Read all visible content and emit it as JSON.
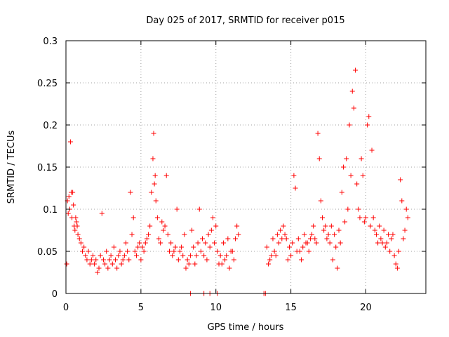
{
  "chart_data": {
    "type": "scatter",
    "title": "Day 025 of 2017, SRMTID for receiver p015",
    "xlabel": "GPS time / hours",
    "ylabel": "SRMTID / TECUs",
    "xlim": [
      0,
      24
    ],
    "ylim": [
      0,
      0.3
    ],
    "xticks": [
      0,
      5,
      10,
      15,
      20
    ],
    "xtick_labels": [
      "0",
      "5",
      "10",
      "15",
      "20"
    ],
    "yticks": [
      0,
      0.05,
      0.1,
      0.15,
      0.2,
      0.25,
      0.3
    ],
    "ytick_labels": [
      "0",
      "0.05",
      "0.1",
      "0.15",
      "0.2",
      "0.25",
      "0.3"
    ],
    "grid": true,
    "marker": "+",
    "color": "#ff0000",
    "series": [
      {
        "name": "SRMTID",
        "x": [
          0.05,
          0.1,
          0.15,
          0.2,
          0.25,
          0.3,
          0.35,
          0.4,
          0.45,
          0.5,
          0.55,
          0.6,
          0.65,
          0.7,
          0.75,
          0.8,
          0.9,
          1.0,
          1.1,
          1.2,
          1.3,
          1.4,
          1.5,
          1.6,
          1.7,
          1.8,
          1.9,
          2.0,
          2.1,
          2.2,
          2.3,
          2.4,
          2.5,
          2.6,
          2.7,
          2.8,
          2.9,
          3.0,
          3.1,
          3.2,
          3.3,
          3.4,
          3.5,
          3.6,
          3.7,
          3.8,
          3.9,
          4.0,
          4.1,
          4.2,
          4.3,
          4.4,
          4.5,
          4.6,
          4.7,
          4.8,
          4.9,
          5.0,
          5.1,
          5.2,
          5.3,
          5.4,
          5.5,
          5.6,
          5.7,
          5.8,
          5.85,
          5.9,
          5.95,
          6.0,
          6.1,
          6.2,
          6.3,
          6.4,
          6.5,
          6.6,
          6.7,
          6.8,
          6.9,
          7.0,
          7.1,
          7.2,
          7.3,
          7.4,
          7.5,
          7.6,
          7.7,
          7.8,
          7.9,
          8.0,
          8.1,
          8.2,
          8.3,
          8.4,
          8.5,
          8.6,
          8.7,
          8.8,
          8.9,
          9.0,
          9.1,
          9.2,
          9.3,
          9.4,
          9.5,
          9.6,
          9.7,
          9.8,
          9.9,
          10.0,
          10.1,
          10.2,
          10.3,
          10.4,
          10.5,
          10.6,
          10.7,
          10.8,
          10.9,
          11.0,
          11.1,
          11.2,
          11.3,
          11.4,
          11.5,
          13.4,
          13.5,
          13.6,
          13.7,
          13.8,
          13.9,
          14.0,
          14.1,
          14.2,
          14.3,
          14.4,
          14.5,
          14.6,
          14.7,
          14.8,
          14.9,
          15.0,
          15.1,
          15.2,
          15.3,
          15.4,
          15.5,
          15.6,
          15.7,
          15.8,
          15.9,
          16.0,
          16.1,
          16.2,
          16.3,
          16.4,
          16.5,
          16.6,
          16.7,
          16.8,
          16.9,
          17.0,
          17.1,
          17.2,
          17.3,
          17.4,
          17.5,
          17.6,
          17.7,
          17.8,
          17.9,
          18.0,
          18.1,
          18.2,
          18.3,
          18.4,
          18.5,
          18.6,
          18.7,
          18.8,
          18.9,
          19.0,
          19.1,
          19.2,
          19.3,
          19.4,
          19.5,
          19.6,
          19.7,
          19.8,
          19.9,
          20.0,
          20.1,
          20.2,
          20.3,
          20.4,
          20.5,
          20.6,
          20.7,
          20.8,
          20.9,
          21.0,
          21.1,
          21.2,
          21.3,
          21.4,
          21.5,
          21.6,
          21.7,
          21.8,
          21.9,
          22.0,
          22.1,
          22.2,
          22.3,
          22.4,
          22.5,
          22.6,
          22.7,
          22.8,
          8.3,
          9.2,
          9.6,
          10.1,
          13.2,
          13.3
        ],
        "y": [
          0.035,
          0.11,
          0.095,
          0.115,
          0.1,
          0.18,
          0.12,
          0.09,
          0.12,
          0.105,
          0.08,
          0.075,
          0.09,
          0.085,
          0.08,
          0.07,
          0.065,
          0.06,
          0.05,
          0.055,
          0.045,
          0.04,
          0.05,
          0.035,
          0.04,
          0.045,
          0.035,
          0.04,
          0.025,
          0.03,
          0.045,
          0.095,
          0.04,
          0.035,
          0.05,
          0.03,
          0.04,
          0.045,
          0.035,
          0.055,
          0.04,
          0.03,
          0.045,
          0.05,
          0.035,
          0.04,
          0.045,
          0.06,
          0.05,
          0.04,
          0.12,
          0.07,
          0.09,
          0.05,
          0.045,
          0.055,
          0.06,
          0.04,
          0.055,
          0.05,
          0.06,
          0.065,
          0.07,
          0.08,
          0.12,
          0.16,
          0.19,
          0.13,
          0.14,
          0.11,
          0.09,
          0.065,
          0.06,
          0.085,
          0.075,
          0.08,
          0.14,
          0.07,
          0.05,
          0.06,
          0.045,
          0.05,
          0.055,
          0.1,
          0.04,
          0.05,
          0.055,
          0.045,
          0.07,
          0.03,
          0.04,
          0.035,
          0.045,
          0.075,
          0.055,
          0.035,
          0.045,
          0.06,
          0.1,
          0.05,
          0.065,
          0.045,
          0.06,
          0.04,
          0.07,
          0.055,
          0.075,
          0.09,
          0.06,
          0.08,
          0.05,
          0.035,
          0.045,
          0.035,
          0.06,
          0.04,
          0.045,
          0.065,
          0.03,
          0.05,
          0.05,
          0.04,
          0.065,
          0.08,
          0.07,
          0.055,
          0.035,
          0.04,
          0.045,
          0.065,
          0.05,
          0.045,
          0.07,
          0.06,
          0.075,
          0.065,
          0.08,
          0.07,
          0.065,
          0.04,
          0.055,
          0.045,
          0.06,
          0.14,
          0.125,
          0.05,
          0.065,
          0.05,
          0.04,
          0.055,
          0.07,
          0.06,
          0.06,
          0.05,
          0.065,
          0.07,
          0.08,
          0.065,
          0.06,
          0.19,
          0.16,
          0.11,
          0.09,
          0.075,
          0.08,
          0.065,
          0.07,
          0.06,
          0.08,
          0.04,
          0.07,
          0.055,
          0.03,
          0.075,
          0.06,
          0.12,
          0.15,
          0.085,
          0.16,
          0.1,
          0.2,
          0.14,
          0.24,
          0.22,
          0.265,
          0.13,
          0.1,
          0.09,
          0.16,
          0.14,
          0.085,
          0.09,
          0.2,
          0.21,
          0.08,
          0.17,
          0.09,
          0.075,
          0.07,
          0.06,
          0.08,
          0.065,
          0.06,
          0.075,
          0.055,
          0.06,
          0.07,
          0.05,
          0.065,
          0.07,
          0.045,
          0.035,
          0.03,
          0.05,
          0.135,
          0.11,
          0.065,
          0.075,
          0.1,
          0.09,
          0,
          0,
          0,
          0,
          0,
          0
        ]
      }
    ]
  }
}
